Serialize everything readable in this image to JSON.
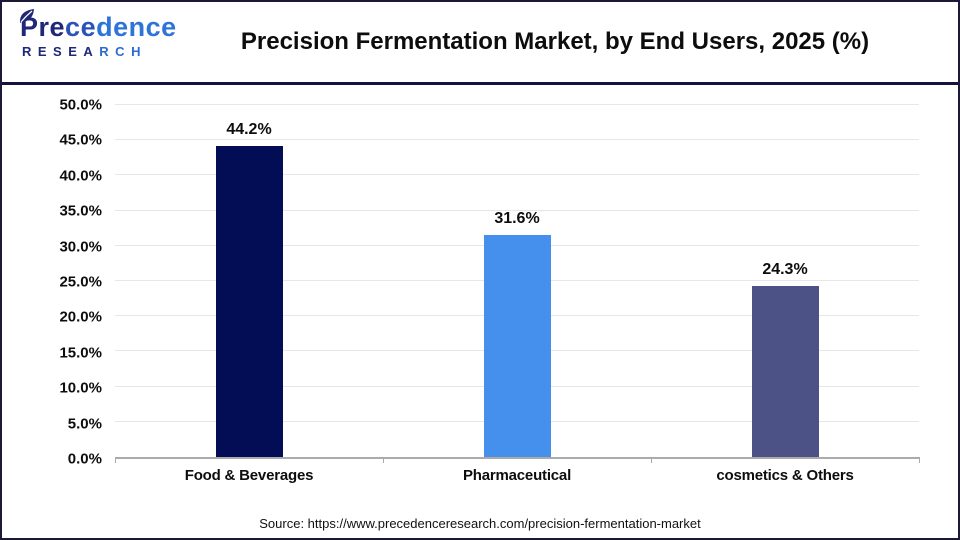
{
  "header": {
    "logo": {
      "word_parts": {
        "p1": "Pre",
        "p2": "ce",
        "p3": "dence"
      },
      "sub_parts": {
        "p1": "RESEA",
        "p2": "RCH"
      }
    },
    "title_main": "Precision Fermentation Market, by End Users",
    "title_suffix": ", 2025 (%)"
  },
  "chart_data": {
    "type": "bar",
    "title": "Precision Fermentation Market, by End Users, 2025 (%)",
    "categories": [
      "Food & Beverages",
      "Pharmaceutical",
      "cosmetics & Others"
    ],
    "values": [
      44.2,
      31.6,
      24.3
    ],
    "value_labels": [
      "44.2%",
      "31.6%",
      "24.3%"
    ],
    "bar_colors": [
      "#030d56",
      "#4590ec",
      "#4d5286"
    ],
    "ylim": [
      0,
      50
    ],
    "ytick_step": 5,
    "yticks": [
      "0.0%",
      "5.0%",
      "10.0%",
      "15.0%",
      "20.0%",
      "25.0%",
      "30.0%",
      "35.0%",
      "40.0%",
      "45.0%",
      "50.0%"
    ],
    "grid": true,
    "legend_position": "none",
    "xlabel": "",
    "ylabel": ""
  },
  "footer": {
    "source": "Source: https://www.precedenceresearch.com/precision-fermentation-market"
  },
  "colors": {
    "divider": "#16123f",
    "frame_border": "#1b1838",
    "gridline": "#e7e7e7",
    "axis_line": "#ababab",
    "logo_navy": "#1f2878",
    "logo_blue": "#2d74d9"
  }
}
